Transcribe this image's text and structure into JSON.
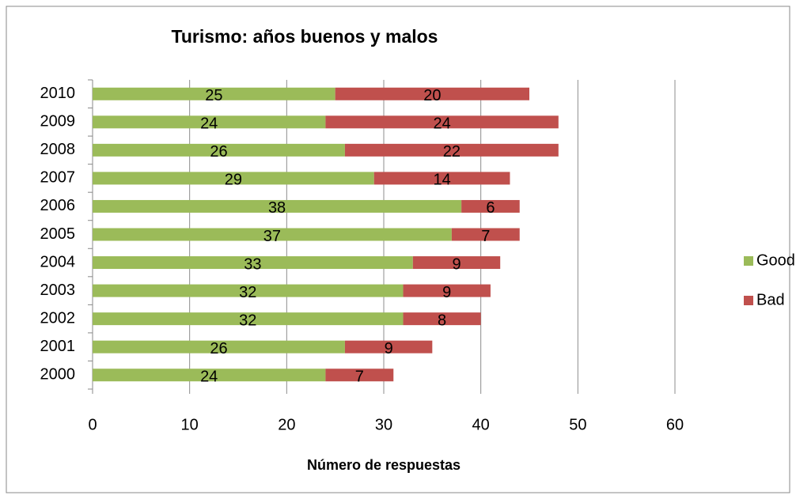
{
  "chart_data": {
    "type": "bar",
    "orientation": "horizontal",
    "stacked": true,
    "title": "Turismo: años buenos y malos",
    "x_label": "Número de respuestas",
    "categories": [
      "2000",
      "2001",
      "2002",
      "2003",
      "2004",
      "2005",
      "2006",
      "2007",
      "2008",
      "2009",
      "2010"
    ],
    "series": [
      {
        "name": "Good",
        "color": "#9bbb59",
        "values": [
          24,
          26,
          32,
          32,
          33,
          37,
          38,
          29,
          26,
          24,
          25
        ]
      },
      {
        "name": "Bad",
        "color": "#c0504d",
        "values": [
          7,
          9,
          8,
          9,
          9,
          7,
          6,
          14,
          22,
          24,
          20
        ]
      }
    ],
    "xlim": [
      0,
      60
    ],
    "xticks": [
      0,
      10,
      20,
      30,
      40,
      50,
      60
    ],
    "grid": true,
    "legend": "right"
  }
}
